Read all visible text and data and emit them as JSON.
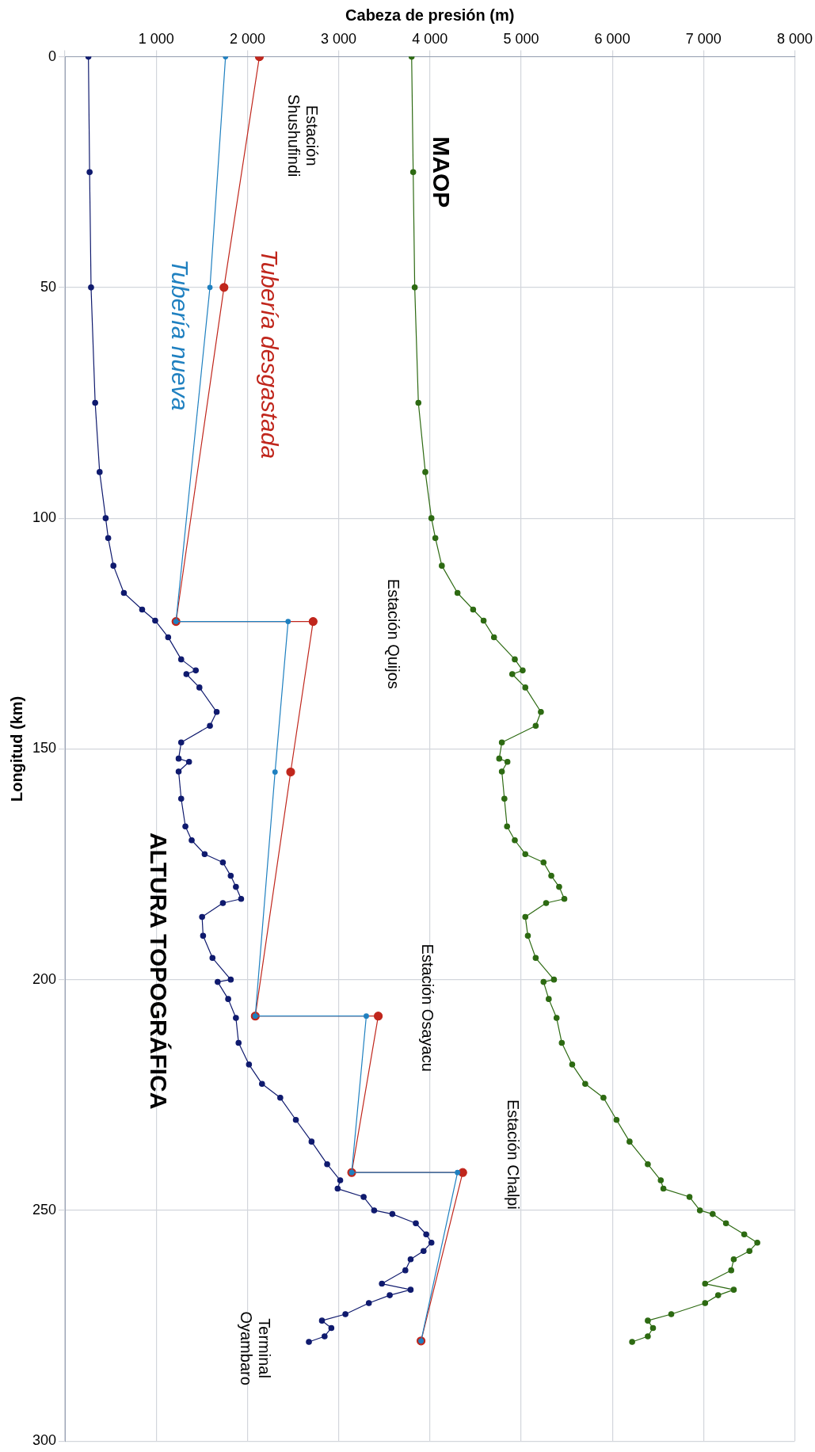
{
  "chart_data": {
    "type": "line",
    "xlabel": "Cabeza de presión (m)",
    "ylabel": "Longitud (km)",
    "ylim": [
      300,
      0
    ],
    "yticks": [
      0,
      50,
      100,
      150,
      200,
      250,
      300
    ],
    "xlim": [
      0,
      8000
    ],
    "xticks": [
      {
        "value": 0,
        "label": null
      },
      {
        "value": 1000,
        "label": "1 000"
      },
      {
        "value": 2000,
        "label": "2 000"
      },
      {
        "value": 3000,
        "label": "3 000"
      },
      {
        "value": 4000,
        "label": "4 000"
      },
      {
        "value": 5000,
        "label": "5 000"
      },
      {
        "value": 6000,
        "label": "6 000"
      },
      {
        "value": 7000,
        "label": "7 000"
      },
      {
        "value": 8000,
        "label": "8 000"
      }
    ],
    "grid": true,
    "marker": "circle",
    "line_style": "solid",
    "series": [
      {
        "name": "MAOP",
        "color": "#2d6a12",
        "values": [
          0,
          25,
          50,
          75,
          90,
          100,
          104.3,
          110.3,
          116.2,
          119.8,
          122.2,
          125.8,
          130.6,
          133,
          133.8,
          136.7,
          142,
          145,
          148.6,
          152.1,
          152.8,
          154.9,
          160.8,
          166.8,
          169.8,
          172.8,
          174.6,
          177.5,
          179.9,
          182.5,
          183.4,
          186.4,
          190.5,
          195.3,
          200,
          200.5,
          204.2,
          208.3,
          213.7,
          218.4,
          222.6,
          225.6,
          230.4,
          235.1,
          240,
          243.5,
          245.3,
          247.1,
          250,
          250.8,
          252.8,
          255.2,
          257,
          258.8,
          260.6,
          263,
          265.9,
          267.2,
          268.4,
          270.1,
          272.5,
          273.9,
          275.5,
          277.3,
          278.5
        ],
        "x": [
          3800,
          3817,
          3834,
          3874,
          3950,
          4017,
          4060,
          4131,
          4303,
          4474,
          4589,
          4703,
          4931,
          5017,
          4903,
          5046,
          5217,
          5160,
          4789,
          4760,
          4850,
          4789,
          4817,
          4846,
          4931,
          5046,
          5246,
          5331,
          5417,
          5474,
          5274,
          5046,
          5074,
          5160,
          5360,
          5246,
          5303,
          5389,
          5446,
          5560,
          5703,
          5903,
          6046,
          6189,
          6389,
          6531,
          6560,
          6846,
          6960,
          7100,
          7246,
          7446,
          7589,
          7503,
          7331,
          7303,
          7017,
          7331,
          7160,
          7017,
          6646,
          6389,
          6446,
          6389,
          6217
        ]
      },
      {
        "name": "Tubería desgastada",
        "color": "#c0261c",
        "values": [
          0,
          50,
          122.4,
          122.4,
          155,
          207.9,
          207.9,
          241.8,
          241.8,
          278.3
        ],
        "x": [
          2131,
          1743,
          1217,
          2720,
          2474,
          2086,
          3434,
          3143,
          4360,
          3903
        ]
      },
      {
        "name": "Tubería nueva",
        "color": "#1f80c0",
        "values": [
          0,
          50,
          122.4,
          122.4,
          155,
          207.9,
          207.9,
          241.8,
          241.8,
          278.3
        ],
        "x": [
          1760,
          1589,
          1217,
          2446,
          2303,
          2086,
          3303,
          3143,
          4303,
          3903
        ]
      },
      {
        "name": "ALTURA TOPOGRÁFICA",
        "color": "#0f1a6e",
        "values": [
          0,
          25,
          50,
          75,
          90,
          100,
          104.3,
          110.3,
          116.2,
          119.8,
          122.2,
          125.8,
          130.6,
          133,
          133.8,
          136.7,
          142,
          145,
          148.6,
          152.1,
          152.8,
          154.9,
          160.8,
          166.8,
          169.8,
          172.8,
          174.6,
          177.5,
          179.9,
          182.5,
          183.4,
          186.4,
          190.5,
          195.3,
          200,
          200.5,
          204.2,
          208.3,
          213.7,
          218.4,
          222.6,
          225.6,
          230.4,
          235.1,
          240,
          243.5,
          245.3,
          247.1,
          250,
          250.8,
          252.8,
          255.2,
          257,
          258.8,
          260.6,
          263,
          265.9,
          267.2,
          268.4,
          270.1,
          272.5,
          273.9,
          275.5,
          277.3,
          278.5
        ],
        "x": [
          257,
          270,
          286,
          331,
          380,
          446,
          474,
          531,
          646,
          846,
          989,
          1131,
          1274,
          1434,
          1331,
          1474,
          1663,
          1589,
          1274,
          1246,
          1360,
          1246,
          1274,
          1320,
          1389,
          1531,
          1731,
          1817,
          1874,
          1931,
          1731,
          1503,
          1514,
          1617,
          1817,
          1674,
          1789,
          1874,
          1903,
          2017,
          2160,
          2360,
          2531,
          2703,
          2874,
          3017,
          2989,
          3274,
          3389,
          3589,
          3846,
          3960,
          4017,
          3931,
          3789,
          3731,
          3474,
          3789,
          3560,
          3331,
          3074,
          2817,
          2920,
          2846,
          2674
        ]
      }
    ],
    "legend": false,
    "annotations": [
      "Estación Shushufindi",
      "Estación Quijos",
      "Estación Osayacu",
      "Estación Chalpi",
      "Terminal Oyambaro"
    ]
  }
}
